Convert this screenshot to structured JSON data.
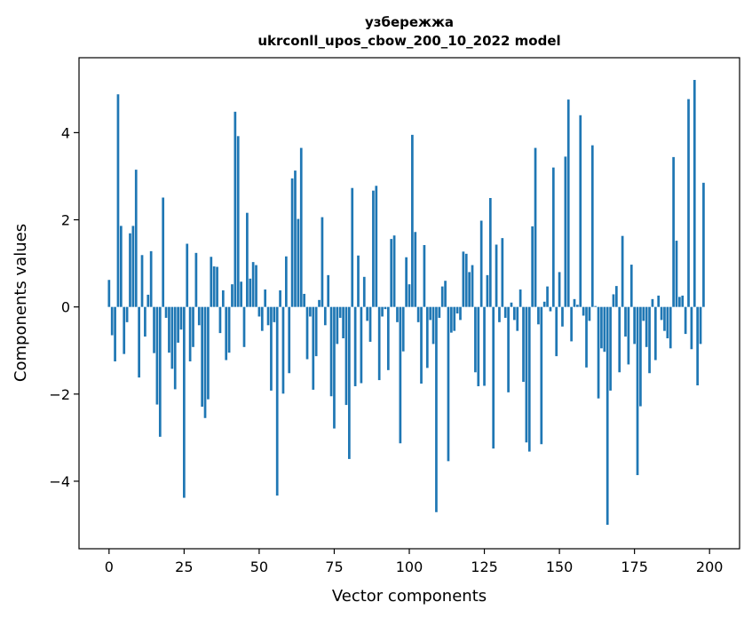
{
  "chart_data": {
    "type": "bar",
    "title": "узбережжа",
    "subtitle": "ukrconll_upos_cbow_200_10_2022 model",
    "xlabel": "Vector components",
    "ylabel": "Components values",
    "xlim": [
      -10,
      210
    ],
    "ylim": [
      -5.55,
      5.72
    ],
    "xticks": [
      0,
      25,
      50,
      75,
      100,
      125,
      150,
      175,
      200
    ],
    "yticks": [
      -4,
      -2,
      0,
      2,
      4
    ],
    "bar_color": "#1f77b4",
    "grid": false,
    "values": [
      0.62,
      -0.65,
      -1.25,
      4.88,
      1.86,
      -1.08,
      -0.35,
      1.69,
      1.86,
      3.15,
      -1.62,
      1.19,
      -0.68,
      0.28,
      1.28,
      -1.06,
      -2.24,
      -2.98,
      2.51,
      -0.25,
      -1.05,
      -1.42,
      -1.89,
      -0.82,
      -0.52,
      -4.38,
      1.45,
      -1.25,
      -0.92,
      1.24,
      -0.42,
      -2.29,
      -2.55,
      -2.12,
      1.15,
      0.93,
      0.92,
      -0.6,
      0.38,
      -1.22,
      -1.05,
      0.52,
      4.48,
      3.92,
      0.58,
      -0.92,
      2.16,
      0.65,
      1.03,
      0.96,
      -0.22,
      -0.55,
      0.4,
      -0.42,
      -1.92,
      -0.35,
      -4.33,
      0.38,
      -1.99,
      1.16,
      -1.52,
      2.95,
      3.13,
      2.02,
      3.65,
      0.3,
      -1.2,
      -0.22,
      -1.9,
      -1.13,
      0.16,
      2.06,
      -0.42,
      0.73,
      -2.05,
      -2.79,
      -0.85,
      -0.25,
      -0.72,
      -2.25,
      -3.49,
      2.73,
      -1.82,
      1.18,
      -1.75,
      0.69,
      -0.32,
      -0.8,
      2.67,
      2.78,
      -1.68,
      -0.22,
      -0.05,
      -1.45,
      1.56,
      1.64,
      -0.35,
      -3.13,
      -1.02,
      1.14,
      0.52,
      3.95,
      1.72,
      -0.35,
      -1.76,
      1.42,
      -1.4,
      -0.3,
      -0.85,
      -4.71,
      -0.25,
      0.47,
      0.6,
      -3.54,
      -0.59,
      -0.55,
      -0.15,
      -0.3,
      1.27,
      1.22,
      0.8,
      0.96,
      -1.5,
      -1.82,
      1.98,
      -1.81,
      0.73,
      2.5,
      -3.25,
      1.43,
      -0.35,
      1.58,
      -0.25,
      -1.96,
      0.1,
      -0.3,
      -0.55,
      0.4,
      -1.72,
      -3.11,
      -3.32,
      1.85,
      3.65,
      -0.4,
      -3.15,
      0.12,
      0.47,
      -0.1,
      3.2,
      -1.13,
      0.8,
      -0.45,
      3.45,
      4.76,
      -0.79,
      0.18,
      0.05,
      4.4,
      -0.2,
      -1.39,
      -0.32,
      3.71,
      0.02,
      -2.1,
      -0.95,
      -1.03,
      -5.0,
      -1.92,
      0.29,
      0.48,
      -1.5,
      1.63,
      -0.68,
      -1.32,
      0.97,
      -0.85,
      -3.86,
      -2.28,
      -0.32,
      -0.92,
      -1.52,
      0.18,
      -1.22,
      0.26,
      -0.3,
      -0.55,
      -0.72,
      -0.95,
      3.44,
      1.52,
      0.23,
      0.26,
      -0.62,
      4.77,
      -0.97,
      5.21,
      -1.8,
      -0.85,
      2.85
    ]
  }
}
